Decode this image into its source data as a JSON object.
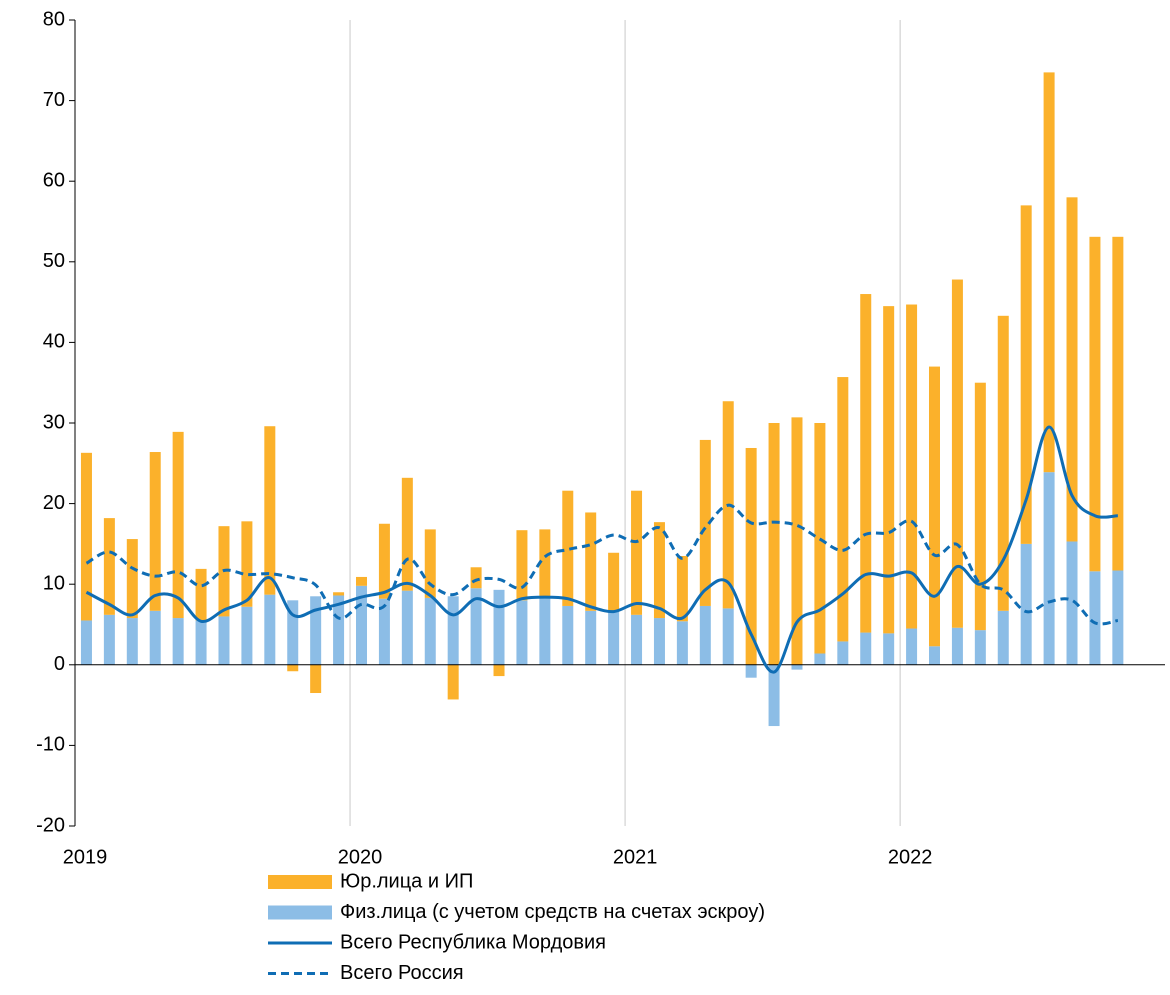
{
  "chart_data": {
    "type": "bar",
    "categories": [
      "2019",
      null,
      null,
      null,
      null,
      null,
      null,
      null,
      null,
      null,
      null,
      null,
      "2020",
      null,
      null,
      null,
      null,
      null,
      null,
      null,
      null,
      null,
      null,
      null,
      "2021",
      null,
      null,
      null,
      null,
      null,
      null,
      null,
      null,
      null,
      null,
      null,
      "2022",
      null,
      null,
      null,
      null,
      null,
      null,
      null,
      null,
      null
    ],
    "stacked": true,
    "series": [
      {
        "name": "Физ.лица (с учетом средств на счетах эскроу)",
        "color": "#8cbde6",
        "kind": "bar",
        "values": [
          5.5,
          6.2,
          5.8,
          6.7,
          5.8,
          5.5,
          6.0,
          7.2,
          8.7,
          8.0,
          8.5,
          8.6,
          9.8,
          8.2,
          9.2,
          8.3,
          8.5,
          9.5,
          9.3,
          8.0,
          8.3,
          7.3,
          6.7,
          6.6,
          6.2,
          5.8,
          5.4,
          7.3,
          7.0,
          -1.6,
          -7.6,
          -0.6,
          1.4,
          2.9,
          4.0,
          3.9,
          4.5,
          2.3,
          4.6,
          4.3,
          6.7,
          15.0,
          23.9,
          15.3,
          11.6,
          11.7
        ]
      },
      {
        "name": "Юр.лица и ИП",
        "color": "#fbb12b",
        "kind": "bar",
        "values": [
          20.8,
          12.0,
          9.8,
          19.7,
          23.1,
          6.4,
          11.2,
          10.6,
          20.9,
          -0.8,
          -3.5,
          0.4,
          1.1,
          9.3,
          14.0,
          8.5,
          -4.3,
          2.6,
          -1.4,
          8.7,
          8.5,
          14.3,
          12.2,
          7.3,
          15.4,
          11.9,
          8.1,
          20.6,
          25.7,
          26.9,
          30.0,
          30.7,
          28.6,
          32.8,
          42.0,
          40.6,
          40.2,
          34.7,
          43.2,
          30.7,
          36.6,
          42.0,
          49.6,
          42.7,
          41.5,
          41.4
        ]
      },
      {
        "name": "Всего Республика Мордовия",
        "color": "#0f6db4",
        "kind": "line",
        "dash": false,
        "values": [
          9.0,
          7.5,
          6.2,
          8.6,
          8.3,
          5.4,
          6.8,
          8.0,
          10.8,
          6.2,
          6.8,
          7.5,
          8.4,
          9.0,
          10.1,
          8.6,
          6.2,
          8.2,
          7.2,
          8.2,
          8.4,
          8.2,
          7.2,
          6.6,
          7.6,
          7.0,
          5.8,
          9.3,
          10.2,
          3.8,
          -0.9,
          5.3,
          6.8,
          8.8,
          11.2,
          11.0,
          11.4,
          8.5,
          12.2,
          10.0,
          13.0,
          20.5,
          29.5,
          21.0,
          18.5,
          18.5
        ]
      },
      {
        "name": "Всего Россия",
        "color": "#0f6db4",
        "kind": "line",
        "dash": true,
        "values": [
          12.6,
          14.0,
          12.0,
          11.0,
          11.5,
          9.8,
          11.7,
          11.2,
          11.3,
          10.8,
          9.9,
          5.8,
          7.5,
          7.3,
          13.1,
          10.0,
          8.7,
          10.5,
          10.6,
          9.6,
          13.4,
          14.3,
          14.9,
          16.1,
          15.3,
          17.0,
          13.2,
          17.0,
          19.8,
          17.6,
          17.7,
          17.3,
          15.6,
          14.2,
          16.2,
          16.4,
          17.8,
          13.6,
          14.9,
          10.0,
          9.3,
          6.6,
          7.8,
          8.0,
          5.2,
          5.5
        ]
      }
    ],
    "legend_order": [
      1,
      0,
      2,
      3
    ],
    "ylim": [
      -20,
      80
    ],
    "yticks": [
      -20,
      -10,
      0,
      10,
      20,
      30,
      40,
      50,
      60,
      70,
      80
    ],
    "grid": "x"
  }
}
